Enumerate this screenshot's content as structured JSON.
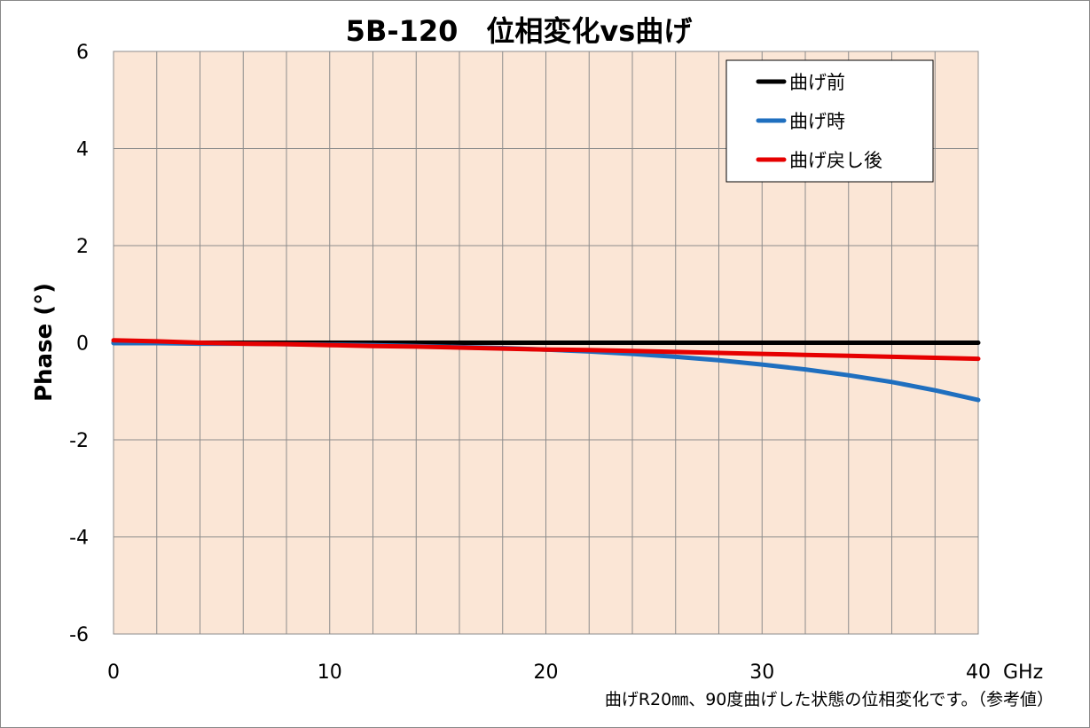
{
  "chart_data": {
    "type": "line",
    "title": "5B-120　位相変化vs曲げ",
    "xlabel": "GHz",
    "ylabel": "Phase (°)",
    "xlim": [
      0,
      40
    ],
    "ylim": [
      -6,
      6
    ],
    "xticks": [
      0,
      10,
      20,
      30,
      40
    ],
    "yticks": [
      6,
      4,
      2,
      0,
      -2,
      -4,
      -6
    ],
    "x_minor_step": 2,
    "grid": true,
    "plot_background": "#fbe6d6",
    "legend_position": "top-right",
    "x": [
      0,
      2,
      4,
      6,
      8,
      10,
      12,
      14,
      16,
      18,
      20,
      22,
      24,
      26,
      28,
      30,
      32,
      34,
      36,
      38,
      40
    ],
    "series": [
      {
        "name": "曲げ前",
        "color": "#000000",
        "values": [
          0,
          0,
          0,
          0,
          0,
          0,
          0,
          0,
          0,
          0,
          0,
          0,
          0,
          0,
          0,
          0,
          0,
          0,
          0,
          0,
          0
        ]
      },
      {
        "name": "曲げ時",
        "color": "#1f6fbf",
        "values": [
          -0.01,
          -0.01,
          -0.02,
          -0.02,
          -0.03,
          -0.04,
          -0.05,
          -0.07,
          -0.09,
          -0.11,
          -0.14,
          -0.18,
          -0.23,
          -0.29,
          -0.36,
          -0.45,
          -0.55,
          -0.67,
          -0.81,
          -0.98,
          -1.18
        ]
      },
      {
        "name": "曲げ戻し後",
        "color": "#e60000",
        "values": [
          0.05,
          0.03,
          0.0,
          -0.02,
          -0.03,
          -0.05,
          -0.07,
          -0.08,
          -0.1,
          -0.12,
          -0.14,
          -0.15,
          -0.17,
          -0.19,
          -0.21,
          -0.23,
          -0.25,
          -0.27,
          -0.29,
          -0.31,
          -0.33
        ]
      }
    ],
    "note": "曲げR20㎜、90度曲げした状態の位相変化です。（参考値）"
  }
}
